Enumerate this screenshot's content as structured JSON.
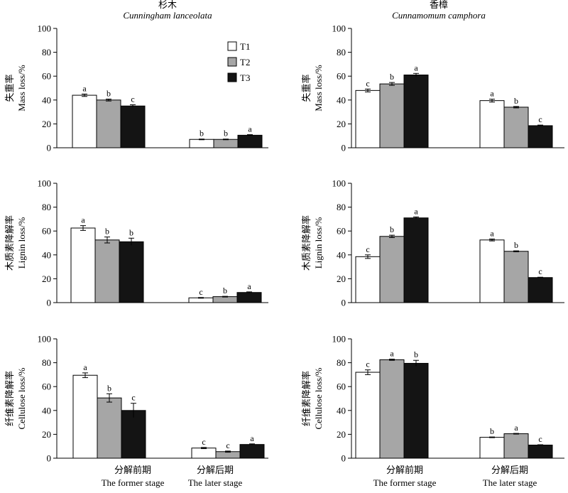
{
  "columns": [
    {
      "title_cn": "杉木",
      "title_en": "Cunningham lanceolata"
    },
    {
      "title_cn": "香樟",
      "title_en": "Cunnamomum camphora"
    }
  ],
  "categories": [
    {
      "cn": "分解前期",
      "en": "The former stage"
    },
    {
      "cn": "分解后期",
      "en": "The later stage"
    }
  ],
  "legend": [
    "T1",
    "T2",
    "T3"
  ],
  "colors": {
    "T1": "#ffffff",
    "T2": "#a6a6a6",
    "T3": "#141414"
  },
  "chart_data": [
    {
      "type": "bar",
      "panel": "mass-cunningham",
      "ylabel_cn": "失重率",
      "ylabel_en": "Mass loss/%",
      "ylim": [
        0,
        100
      ],
      "yticks": [
        0,
        20,
        40,
        60,
        80,
        100
      ],
      "categories": [
        "分解前期",
        "分解后期"
      ],
      "series": [
        {
          "name": "T1",
          "values": [
            44,
            7
          ],
          "errors": [
            1,
            0.3
          ],
          "letters": [
            "a",
            "b"
          ]
        },
        {
          "name": "T2",
          "values": [
            40,
            7
          ],
          "errors": [
            0.8,
            0.3
          ],
          "letters": [
            "b",
            "b"
          ]
        },
        {
          "name": "T3",
          "values": [
            35,
            10.5
          ],
          "errors": [
            1,
            0.5
          ],
          "letters": [
            "c",
            "a"
          ]
        }
      ]
    },
    {
      "type": "bar",
      "panel": "mass-camphora",
      "ylabel_cn": "失重率",
      "ylabel_en": "Mass loss/%",
      "ylim": [
        0,
        100
      ],
      "yticks": [
        0,
        20,
        40,
        60,
        80,
        100
      ],
      "categories": [
        "分解前期",
        "分解后期"
      ],
      "series": [
        {
          "name": "T1",
          "values": [
            48,
            39.5
          ],
          "errors": [
            1.2,
            1.2
          ],
          "letters": [
            "c",
            "a"
          ]
        },
        {
          "name": "T2",
          "values": [
            53.5,
            34
          ],
          "errors": [
            1.2,
            0.6
          ],
          "letters": [
            "b",
            "b"
          ]
        },
        {
          "name": "T3",
          "values": [
            61,
            18.5
          ],
          "errors": [
            1.3,
            0.5
          ],
          "letters": [
            "a",
            "c"
          ]
        }
      ]
    },
    {
      "type": "bar",
      "panel": "lignin-cunningham",
      "ylabel_cn": "木质素降解率",
      "ylabel_en": "Lignin loss/%",
      "ylim": [
        0,
        100
      ],
      "yticks": [
        0,
        20,
        40,
        60,
        80,
        100
      ],
      "categories": [
        "分解前期",
        "分解后期"
      ],
      "series": [
        {
          "name": "T1",
          "values": [
            62.5,
            4
          ],
          "errors": [
            2,
            0.3
          ],
          "letters": [
            "a",
            "c"
          ]
        },
        {
          "name": "T2",
          "values": [
            52.5,
            5
          ],
          "errors": [
            2.5,
            0.3
          ],
          "letters": [
            "b",
            "b"
          ]
        },
        {
          "name": "T3",
          "values": [
            51,
            8.5
          ],
          "errors": [
            3,
            0.5
          ],
          "letters": [
            "b",
            "a"
          ]
        }
      ]
    },
    {
      "type": "bar",
      "panel": "lignin-camphora",
      "ylabel_cn": "木质素降解率",
      "ylabel_en": "Lignin loss/%",
      "ylim": [
        0,
        100
      ],
      "yticks": [
        0,
        20,
        40,
        60,
        80,
        100
      ],
      "categories": [
        "分解前期",
        "分解后期"
      ],
      "series": [
        {
          "name": "T1",
          "values": [
            38.5,
            52.5
          ],
          "errors": [
            1.5,
            0.8
          ],
          "letters": [
            "c",
            "a"
          ]
        },
        {
          "name": "T2",
          "values": [
            55.5,
            43
          ],
          "errors": [
            1,
            0.4
          ],
          "letters": [
            "b",
            "b"
          ]
        },
        {
          "name": "T3",
          "values": [
            71,
            21
          ],
          "errors": [
            0.8,
            0.3
          ],
          "letters": [
            "a",
            "c"
          ]
        }
      ]
    },
    {
      "type": "bar",
      "panel": "cellulose-cunningham",
      "ylabel_cn": "纤维素降解率",
      "ylabel_en": "Cellulose loss/%",
      "ylim": [
        0,
        100
      ],
      "yticks": [
        0,
        20,
        40,
        60,
        80,
        100
      ],
      "categories": [
        "分解前期",
        "分解后期"
      ],
      "series": [
        {
          "name": "T1",
          "values": [
            69.5,
            8.5
          ],
          "errors": [
            2,
            0.5
          ],
          "letters": [
            "a",
            "c"
          ]
        },
        {
          "name": "T2",
          "values": [
            50.5,
            5.5
          ],
          "errors": [
            3.5,
            0.5
          ],
          "letters": [
            "b",
            "c"
          ]
        },
        {
          "name": "T3",
          "values": [
            40,
            11.5
          ],
          "errors": [
            6,
            0.5
          ],
          "letters": [
            "c",
            "a"
          ]
        }
      ]
    },
    {
      "type": "bar",
      "panel": "cellulose-camphora",
      "ylabel_cn": "纤维素降解率",
      "ylabel_en": "Cellulose loss/%",
      "ylim": [
        0,
        100
      ],
      "yticks": [
        0,
        20,
        40,
        60,
        80,
        100
      ],
      "categories": [
        "分解前期",
        "分解后期"
      ],
      "series": [
        {
          "name": "T1",
          "values": [
            72,
            17.5
          ],
          "errors": [
            2,
            0.3
          ],
          "letters": [
            "c",
            "b"
          ]
        },
        {
          "name": "T2",
          "values": [
            82.5,
            20.5
          ],
          "errors": [
            0.5,
            0.3
          ],
          "letters": [
            "a",
            "a"
          ]
        },
        {
          "name": "T3",
          "values": [
            79.5,
            11
          ],
          "errors": [
            2.5,
            0.3
          ],
          "letters": [
            "b",
            "c"
          ]
        }
      ]
    }
  ]
}
